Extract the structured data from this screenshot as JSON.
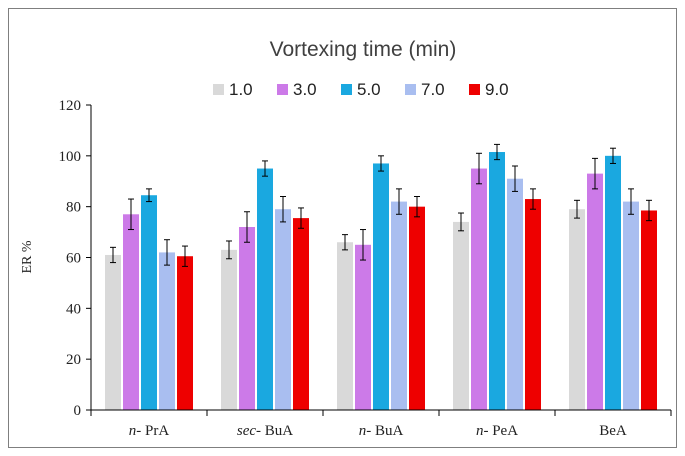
{
  "chart_data": {
    "type": "bar",
    "title": "Vortexing time (min)",
    "xlabel": "",
    "ylabel": "ER %",
    "ylim": [
      0,
      120
    ],
    "yticks": [
      0,
      20,
      40,
      60,
      80,
      100,
      120
    ],
    "legend_position": "top",
    "categories": [
      {
        "prefix": "n-",
        "name": " PrA"
      },
      {
        "prefix": "sec-",
        "name": " BuA"
      },
      {
        "prefix": "n-",
        "name": " BuA"
      },
      {
        "prefix": "n-",
        "name": " PeA"
      },
      {
        "prefix": "",
        "name": "BeA"
      }
    ],
    "series": [
      {
        "name": "1.0",
        "color": "#d9d9d9",
        "values": [
          61,
          63,
          66,
          74,
          79
        ],
        "errors": [
          3,
          3.5,
          3,
          3.5,
          3.5
        ]
      },
      {
        "name": "3.0",
        "color": "#cc7ae8",
        "values": [
          77,
          72,
          65,
          95,
          93
        ],
        "errors": [
          6,
          6,
          6,
          6,
          6
        ]
      },
      {
        "name": "5.0",
        "color": "#1aa8e0",
        "values": [
          84.5,
          95,
          97,
          101.5,
          100
        ],
        "errors": [
          2.5,
          3,
          3,
          3,
          3
        ]
      },
      {
        "name": "7.0",
        "color": "#a9bef0",
        "values": [
          62,
          79,
          82,
          91,
          82
        ],
        "errors": [
          5,
          5,
          5,
          5,
          5
        ]
      },
      {
        "name": "9.0",
        "color": "#ee0000",
        "values": [
          60.5,
          75.5,
          80,
          83,
          78.5
        ],
        "errors": [
          4,
          4,
          4,
          4,
          4
        ]
      }
    ]
  }
}
